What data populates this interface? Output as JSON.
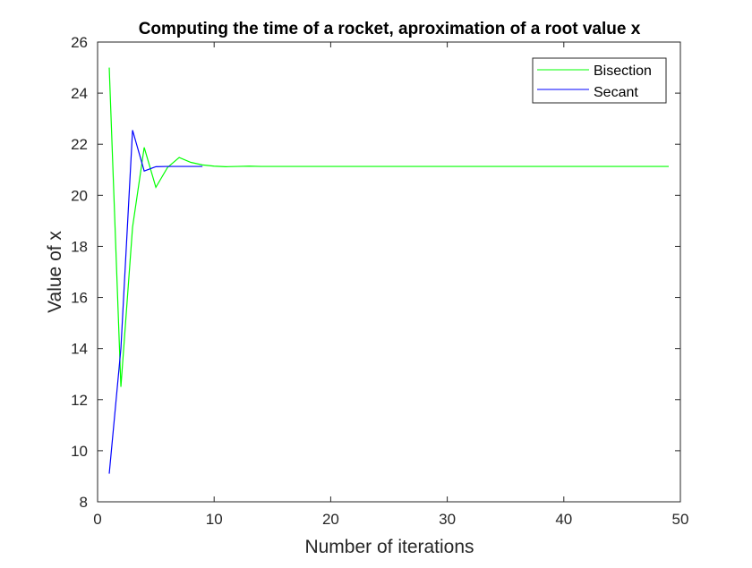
{
  "chart_data": {
    "type": "line",
    "title": "Computing the time of a rocket, aproximation of a root value x",
    "xlabel": "Number of iterations",
    "ylabel": "Value of x",
    "xlim": [
      0,
      50
    ],
    "ylim": [
      8,
      26
    ],
    "xticks": [
      0,
      10,
      20,
      30,
      40,
      50
    ],
    "yticks": [
      8,
      10,
      12,
      14,
      16,
      18,
      20,
      22,
      24,
      26
    ],
    "grid": false,
    "legend_position": "top-right",
    "series": [
      {
        "name": "Bisection",
        "color": "#00ff00",
        "x": [
          1,
          2,
          3,
          4,
          5,
          6,
          7,
          8,
          9,
          10,
          11,
          12,
          13,
          14,
          15,
          16,
          17,
          18,
          19,
          20,
          21,
          22,
          23,
          24,
          25,
          26,
          27,
          28,
          29,
          30,
          31,
          32,
          33,
          34,
          35,
          36,
          37,
          38,
          39,
          40,
          41,
          42,
          43,
          44,
          45,
          46,
          47,
          48,
          49
        ],
        "y": [
          25,
          12.5,
          18.75,
          21.875,
          20.3125,
          21.09,
          21.48,
          21.29,
          21.19,
          21.14,
          21.12,
          21.13,
          21.14,
          21.13,
          21.13,
          21.13,
          21.13,
          21.13,
          21.13,
          21.13,
          21.13,
          21.13,
          21.13,
          21.13,
          21.13,
          21.13,
          21.13,
          21.13,
          21.13,
          21.13,
          21.13,
          21.13,
          21.13,
          21.13,
          21.13,
          21.13,
          21.13,
          21.13,
          21.13,
          21.13,
          21.13,
          21.13,
          21.13,
          21.13,
          21.13,
          21.13,
          21.13,
          21.13,
          21.13
        ]
      },
      {
        "name": "Secant",
        "color": "#0000ff",
        "x": [
          1,
          2,
          3,
          4,
          5,
          6,
          7,
          8,
          9
        ],
        "y": [
          9.1,
          14.0,
          22.55,
          20.95,
          21.12,
          21.13,
          21.13,
          21.13,
          21.13
        ]
      }
    ]
  }
}
